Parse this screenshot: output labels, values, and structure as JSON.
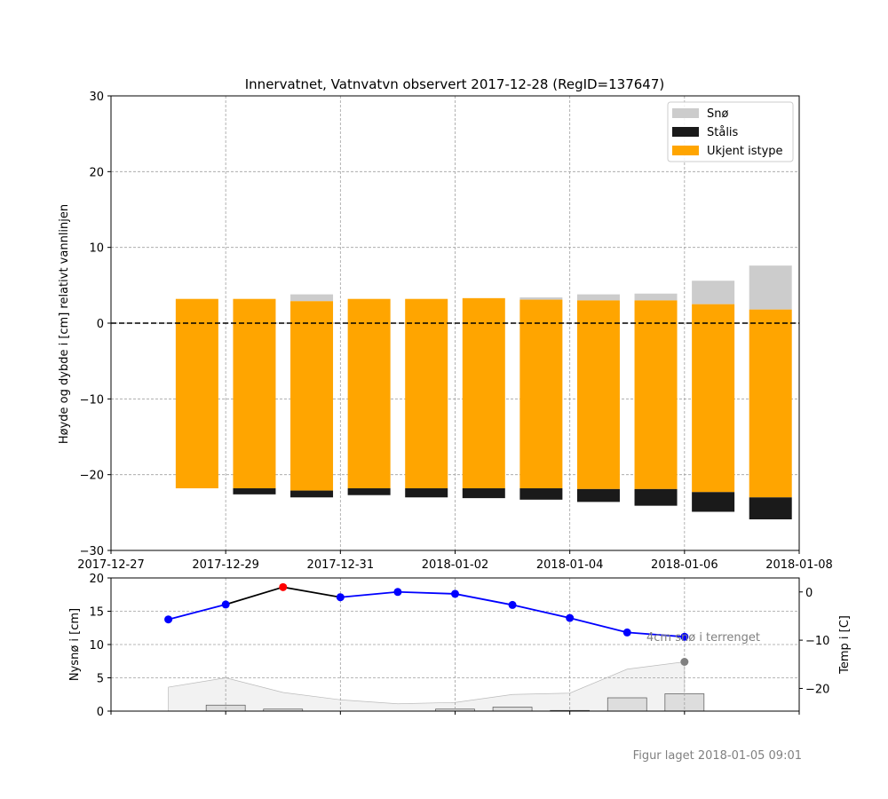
{
  "chart_data": [
    {
      "type": "bar",
      "title": "Innervatnet, Vatnvatvn observert 2017-12-28 (RegID=137647)",
      "xlabel": "",
      "ylabel": "Høyde og dybde i [cm] relativt vannlinjen",
      "xlim": [
        "2017-12-27",
        "2018-01-08"
      ],
      "ylim": [
        -30,
        30
      ],
      "yticks": [
        30,
        20,
        10,
        0,
        -10,
        -20,
        -30
      ],
      "ytick_labels": [
        "30",
        "20",
        "10",
        "0",
        "−10",
        "−20",
        "−30"
      ],
      "xticks": [
        "2017-12-27",
        "2017-12-29",
        "2017-12-31",
        "2018-01-02",
        "2018-01-04",
        "2018-01-06",
        "2018-01-08"
      ],
      "grid": true,
      "legend_position": "top-right",
      "legend": [
        {
          "label": "Snø",
          "color": "#cccccc"
        },
        {
          "label": "Stålis",
          "color": "#1a1a1a"
        },
        {
          "label": "Ukjent istype",
          "color": "#ffa500"
        }
      ],
      "bars": [
        {
          "date": "2017-12-28",
          "snow_top": 3.2,
          "ukjent_top": 3.2,
          "ukjent_bottom": -21.8,
          "stalis_bottom": -21.8
        },
        {
          "date": "2017-12-29",
          "snow_top": 3.2,
          "ukjent_top": 3.2,
          "ukjent_bottom": -21.8,
          "stalis_bottom": -22.6
        },
        {
          "date": "2017-12-30",
          "snow_top": 3.8,
          "ukjent_top": 2.9,
          "ukjent_bottom": -22.1,
          "stalis_bottom": -23.0
        },
        {
          "date": "2017-12-31",
          "snow_top": 3.2,
          "ukjent_top": 3.2,
          "ukjent_bottom": -21.8,
          "stalis_bottom": -22.7
        },
        {
          "date": "2018-01-01",
          "snow_top": 3.2,
          "ukjent_top": 3.2,
          "ukjent_bottom": -21.8,
          "stalis_bottom": -23.0
        },
        {
          "date": "2018-01-02",
          "snow_top": 3.3,
          "ukjent_top": 3.3,
          "ukjent_bottom": -21.8,
          "stalis_bottom": -23.1
        },
        {
          "date": "2018-01-03",
          "snow_top": 3.4,
          "ukjent_top": 3.1,
          "ukjent_bottom": -21.8,
          "stalis_bottom": -23.3
        },
        {
          "date": "2018-01-04",
          "snow_top": 3.8,
          "ukjent_top": 3.0,
          "ukjent_bottom": -21.9,
          "stalis_bottom": -23.6
        },
        {
          "date": "2018-01-05",
          "snow_top": 3.9,
          "ukjent_top": 3.0,
          "ukjent_bottom": -21.9,
          "stalis_bottom": -24.1
        },
        {
          "date": "2018-01-06",
          "snow_top": 5.6,
          "ukjent_top": 2.5,
          "ukjent_bottom": -22.3,
          "stalis_bottom": -24.9
        },
        {
          "date": "2018-01-07",
          "snow_top": 7.6,
          "ukjent_top": 1.8,
          "ukjent_bottom": -23.0,
          "stalis_bottom": -25.9
        }
      ]
    },
    {
      "type": "line",
      "xlim": [
        "2017-12-27",
        "2018-01-08"
      ],
      "ylabel_left": "Nysnø i [cm]",
      "ylabel_right": "Temp i [C]",
      "ylim_left": [
        0,
        20
      ],
      "yticks_left": [
        "0",
        "5",
        "10",
        "15",
        "20"
      ],
      "ylim_right": [
        -24.7,
        2.9
      ],
      "yticks_right": [
        {
          "value": 0,
          "label": "0"
        },
        {
          "value": -10,
          "label": "−10"
        },
        {
          "value": -20,
          "label": "−20"
        }
      ],
      "grid": true,
      "temperature": [
        {
          "date": "2017-12-28",
          "value": -5.7
        },
        {
          "date": "2017-12-29",
          "value": -2.6
        },
        {
          "date": "2017-12-30",
          "value": 1.0,
          "highlight": "#ff0000"
        },
        {
          "date": "2017-12-31",
          "value": -1.1
        },
        {
          "date": "2018-01-01",
          "value": 0.0
        },
        {
          "date": "2018-01-02",
          "value": -0.4
        },
        {
          "date": "2018-01-03",
          "value": -2.7
        },
        {
          "date": "2018-01-04",
          "value": -5.4
        },
        {
          "date": "2018-01-05",
          "value": -8.4
        },
        {
          "date": "2018-01-06",
          "value": -9.3
        }
      ],
      "snow_depth_area": [
        {
          "date": "2017-12-28",
          "value": 3.6
        },
        {
          "date": "2017-12-29",
          "value": 5.0
        },
        {
          "date": "2017-12-30",
          "value": 2.8
        },
        {
          "date": "2017-12-31",
          "value": 1.7
        },
        {
          "date": "2018-01-01",
          "value": 1.1
        },
        {
          "date": "2018-01-02",
          "value": 1.3
        },
        {
          "date": "2018-01-03",
          "value": 2.5
        },
        {
          "date": "2018-01-04",
          "value": 2.7
        },
        {
          "date": "2018-01-05",
          "value": 6.3
        },
        {
          "date": "2018-01-06",
          "value": 7.4
        }
      ],
      "new_snow_bars": [
        {
          "date": "2017-12-29",
          "value": 0.9
        },
        {
          "date": "2017-12-30",
          "value": 0.3
        },
        {
          "date": "2018-01-02",
          "value": 0.3
        },
        {
          "date": "2018-01-03",
          "value": 0.6
        },
        {
          "date": "2018-01-04",
          "value": 0.1
        },
        {
          "date": "2018-01-05",
          "value": 2.0
        },
        {
          "date": "2018-01-06",
          "value": 2.6
        }
      ],
      "snow_point": {
        "date": "2018-01-06",
        "value": 7.4
      },
      "annotation": "4cm snø i terrenget"
    }
  ],
  "footer": "Figur laget 2018-01-05 09:01",
  "colors": {
    "snow": "#cccccc",
    "stalis": "#1a1a1a",
    "ukjent": "#ffa500",
    "temp_line": "#0000ff",
    "temp_marker": "#0000ff",
    "temp_highlight": "#ff0000",
    "snow_point": "#808080",
    "area_fill": "#f2f2f2",
    "area_edge": "#bbbbbb",
    "new_snow": "#dddddd"
  }
}
